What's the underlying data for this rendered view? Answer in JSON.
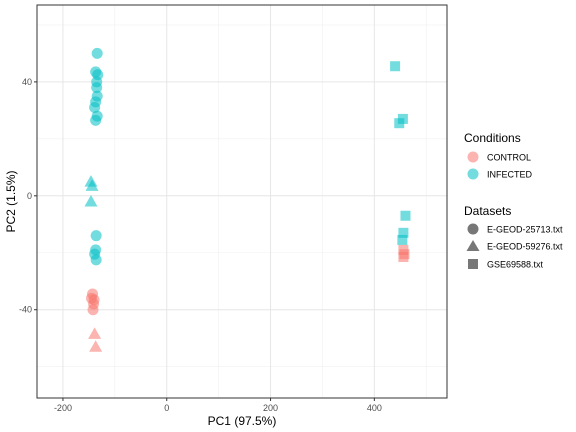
{
  "chart_data": {
    "type": "scatter",
    "xlabel": "PC1 (97.5%)",
    "ylabel": "PC2 (1.5%)",
    "xlim": [
      -250,
      540
    ],
    "ylim": [
      -71,
      67
    ],
    "xticks": [
      -200,
      0,
      200,
      400
    ],
    "yticks": [
      -40,
      0,
      40
    ],
    "grid": true,
    "colors": {
      "CONTROL": "#F8766D",
      "INFECTED": "#00BFC4"
    },
    "legend": {
      "position": "right",
      "color_title": "Conditions",
      "color_entries": [
        "CONTROL",
        "INFECTED"
      ],
      "shape_title": "Datasets",
      "shape_entries": [
        {
          "label": "E-GEOD-25713.txt",
          "shape": "circle"
        },
        {
          "label": "E-GEOD-59276.txt",
          "shape": "triangle"
        },
        {
          "label": "GSE69588.txt",
          "shape": "square"
        }
      ]
    },
    "points": [
      {
        "x": -134,
        "y": 50,
        "condition": "INFECTED",
        "dataset": "E-GEOD-25713.txt"
      },
      {
        "x": -137,
        "y": 43.5,
        "condition": "INFECTED",
        "dataset": "E-GEOD-25713.txt"
      },
      {
        "x": -133,
        "y": 42.5,
        "condition": "INFECTED",
        "dataset": "E-GEOD-25713.txt"
      },
      {
        "x": -135,
        "y": 40,
        "condition": "INFECTED",
        "dataset": "E-GEOD-25713.txt"
      },
      {
        "x": -135,
        "y": 38,
        "condition": "INFECTED",
        "dataset": "E-GEOD-25713.txt"
      },
      {
        "x": -134,
        "y": 35,
        "condition": "INFECTED",
        "dataset": "E-GEOD-25713.txt"
      },
      {
        "x": -137,
        "y": 33,
        "condition": "INFECTED",
        "dataset": "E-GEOD-25713.txt"
      },
      {
        "x": -139,
        "y": 31,
        "condition": "INFECTED",
        "dataset": "E-GEOD-25713.txt"
      },
      {
        "x": -134,
        "y": 28,
        "condition": "INFECTED",
        "dataset": "E-GEOD-25713.txt"
      },
      {
        "x": -137,
        "y": 26.5,
        "condition": "INFECTED",
        "dataset": "E-GEOD-25713.txt"
      },
      {
        "x": -136,
        "y": -14,
        "condition": "INFECTED",
        "dataset": "E-GEOD-25713.txt"
      },
      {
        "x": -137,
        "y": -19,
        "condition": "INFECTED",
        "dataset": "E-GEOD-25713.txt"
      },
      {
        "x": -139,
        "y": -20.5,
        "condition": "INFECTED",
        "dataset": "E-GEOD-25713.txt"
      },
      {
        "x": -136,
        "y": -22.5,
        "condition": "INFECTED",
        "dataset": "E-GEOD-25713.txt"
      },
      {
        "x": -146,
        "y": 5,
        "condition": "INFECTED",
        "dataset": "E-GEOD-59276.txt"
      },
      {
        "x": -144,
        "y": 3.5,
        "condition": "INFECTED",
        "dataset": "E-GEOD-59276.txt"
      },
      {
        "x": -146,
        "y": -2,
        "condition": "INFECTED",
        "dataset": "E-GEOD-59276.txt"
      },
      {
        "x": -143,
        "y": -34.5,
        "condition": "CONTROL",
        "dataset": "E-GEOD-25713.txt"
      },
      {
        "x": -145,
        "y": -36,
        "condition": "CONTROL",
        "dataset": "E-GEOD-25713.txt"
      },
      {
        "x": -140,
        "y": -36.5,
        "condition": "CONTROL",
        "dataset": "E-GEOD-25713.txt"
      },
      {
        "x": -141,
        "y": -38,
        "condition": "CONTROL",
        "dataset": "E-GEOD-25713.txt"
      },
      {
        "x": -142,
        "y": -40,
        "condition": "CONTROL",
        "dataset": "E-GEOD-25713.txt"
      },
      {
        "x": -139,
        "y": -48.5,
        "condition": "CONTROL",
        "dataset": "E-GEOD-59276.txt"
      },
      {
        "x": -137,
        "y": -53,
        "condition": "CONTROL",
        "dataset": "E-GEOD-59276.txt"
      },
      {
        "x": 440,
        "y": 45.5,
        "condition": "INFECTED",
        "dataset": "GSE69588.txt"
      },
      {
        "x": 455,
        "y": 27,
        "condition": "INFECTED",
        "dataset": "GSE69588.txt"
      },
      {
        "x": 448,
        "y": 25.5,
        "condition": "INFECTED",
        "dataset": "GSE69588.txt"
      },
      {
        "x": 460,
        "y": -7,
        "condition": "INFECTED",
        "dataset": "GSE69588.txt"
      },
      {
        "x": 456,
        "y": -13,
        "condition": "INFECTED",
        "dataset": "GSE69588.txt"
      },
      {
        "x": 454,
        "y": -15.5,
        "condition": "INFECTED",
        "dataset": "GSE69588.txt"
      },
      {
        "x": 456,
        "y": -19,
        "condition": "CONTROL",
        "dataset": "GSE69588.txt"
      },
      {
        "x": 458,
        "y": -20.5,
        "condition": "CONTROL",
        "dataset": "GSE69588.txt"
      },
      {
        "x": 456,
        "y": -21.5,
        "condition": "CONTROL",
        "dataset": "GSE69588.txt"
      }
    ]
  }
}
